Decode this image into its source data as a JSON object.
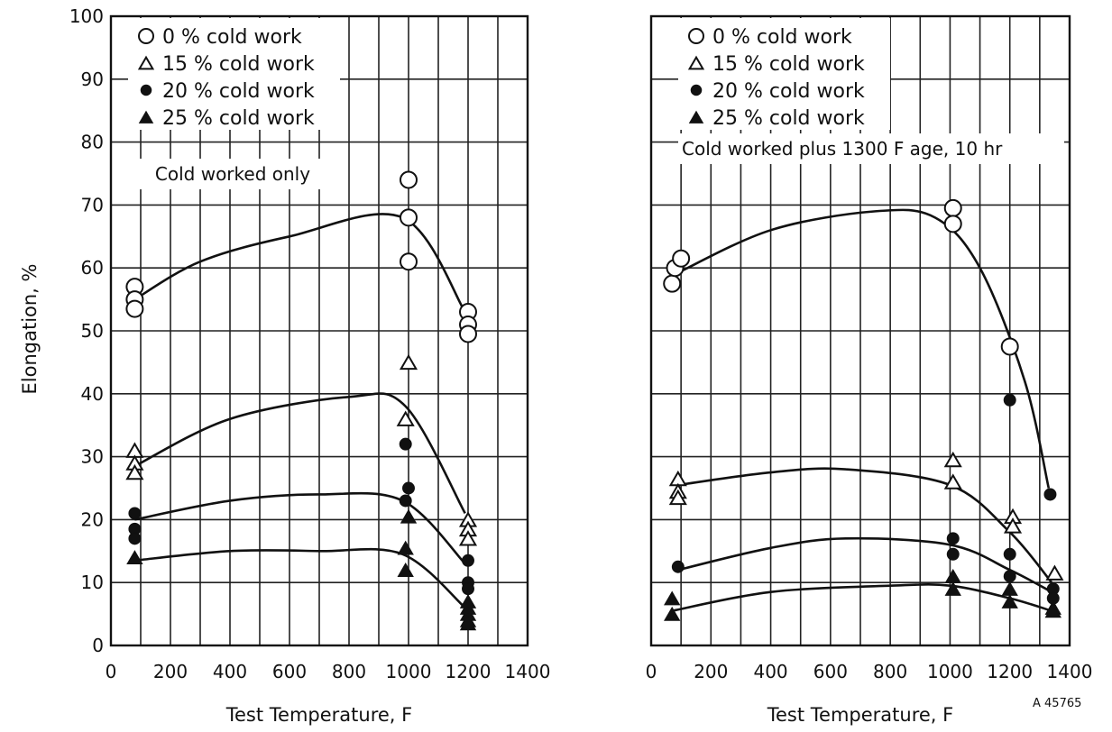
{
  "figure_ref": "A 45765",
  "chart_data": [
    {
      "type": "scatter",
      "note": "Cold worked only",
      "xlabel": "Test Temperature, F",
      "ylabel": "Elongation, %",
      "xlim": [
        0,
        1400
      ],
      "ylim": [
        0,
        100
      ],
      "xticks": [
        "0",
        "200",
        "400",
        "600",
        "800",
        "1000",
        "1200",
        "1400"
      ],
      "yticks": [
        "0",
        "10",
        "20",
        "30",
        "40",
        "50",
        "60",
        "70",
        "80",
        "90",
        "100"
      ],
      "grid": true,
      "legend_position": "top-left",
      "series": [
        {
          "name": "0 % cold work",
          "marker": "open-circle",
          "points": [
            [
              80,
              57
            ],
            [
              80,
              55
            ],
            [
              80,
              53.5
            ],
            [
              1000,
              74
            ],
            [
              1000,
              68
            ],
            [
              1000,
              61
            ],
            [
              1200,
              53
            ],
            [
              1200,
              51
            ],
            [
              1200,
              49.5
            ]
          ],
          "curve": [
            [
              80,
              55
            ],
            [
              300,
              61
            ],
            [
              600,
              65
            ],
            [
              980,
              68
            ],
            [
              1190,
              53
            ]
          ]
        },
        {
          "name": "15 % cold work",
          "marker": "open-triangle",
          "points": [
            [
              80,
              31
            ],
            [
              80,
              29
            ],
            [
              80,
              27.5
            ],
            [
              1000,
              45
            ],
            [
              990,
              36
            ],
            [
              1200,
              20
            ],
            [
              1200,
              18.5
            ],
            [
              1200,
              17
            ]
          ],
          "curve": [
            [
              80,
              28.5
            ],
            [
              400,
              36
            ],
            [
              800,
              39.5
            ],
            [
              990,
              38
            ],
            [
              1190,
              21
            ]
          ]
        },
        {
          "name": "20 % cold work",
          "marker": "filled-circle",
          "points": [
            [
              80,
              21
            ],
            [
              80,
              18.5
            ],
            [
              80,
              17
            ],
            [
              990,
              32
            ],
            [
              1000,
              25
            ],
            [
              990,
              23
            ],
            [
              1200,
              13.5
            ],
            [
              1200,
              10
            ],
            [
              1200,
              9
            ]
          ],
          "curve": [
            [
              80,
              20
            ],
            [
              400,
              23
            ],
            [
              700,
              24
            ],
            [
              980,
              23
            ],
            [
              1190,
              13
            ]
          ]
        },
        {
          "name": "25 % cold work",
          "marker": "filled-triangle",
          "points": [
            [
              80,
              14
            ],
            [
              990,
              15.5
            ],
            [
              990,
              12
            ],
            [
              1000,
              20.5
            ],
            [
              1200,
              7
            ],
            [
              1200,
              6
            ],
            [
              1200,
              5
            ],
            [
              1200,
              4
            ],
            [
              1200,
              3.5
            ]
          ],
          "curve": [
            [
              80,
              13.5
            ],
            [
              400,
              15
            ],
            [
              700,
              15
            ],
            [
              980,
              14.5
            ],
            [
              1190,
              6
            ]
          ]
        }
      ]
    },
    {
      "type": "scatter",
      "note": "Cold worked plus 1300 F age, 10 hr",
      "xlabel": "Test Temperature, F",
      "ylabel": "",
      "xlim": [
        0,
        1400
      ],
      "ylim": [
        0,
        100
      ],
      "xticks": [
        "0",
        "200",
        "400",
        "600",
        "800",
        "1000",
        "1200",
        "1400"
      ],
      "yticks": [],
      "grid": true,
      "legend_position": "top-left",
      "series": [
        {
          "name": "0 % cold work",
          "marker": "open-circle",
          "points": [
            [
              70,
              57.5
            ],
            [
              80,
              60
            ],
            [
              100,
              61.5
            ],
            [
              1010,
              69.5
            ],
            [
              1010,
              67
            ],
            [
              1200,
              47.5
            ]
          ],
          "curve": [
            [
              80,
              59
            ],
            [
              400,
              66
            ],
            [
              750,
              69
            ],
            [
              950,
              68
            ],
            [
              1100,
              60
            ],
            [
              1250,
              42
            ],
            [
              1330,
              25
            ]
          ]
        },
        {
          "name": "15 % cold work",
          "marker": "open-triangle",
          "points": [
            [
              90,
              26.5
            ],
            [
              90,
              24.5
            ],
            [
              90,
              23.5
            ],
            [
              1010,
              29.5
            ],
            [
              1010,
              26
            ],
            [
              1210,
              20.5
            ],
            [
              1210,
              19
            ],
            [
              1350,
              11.5
            ]
          ],
          "curve": [
            [
              90,
              25.5
            ],
            [
              400,
              27.5
            ],
            [
              650,
              28
            ],
            [
              1000,
              25.5
            ],
            [
              1200,
              18
            ],
            [
              1340,
              10
            ]
          ]
        },
        {
          "name": "20 % cold work",
          "marker": "filled-circle",
          "points": [
            [
              90,
              12.5
            ],
            [
              1335,
              24
            ],
            [
              1200,
              39
            ],
            [
              1010,
              17
            ],
            [
              1010,
              14.5
            ],
            [
              1200,
              14.5
            ],
            [
              1200,
              11
            ],
            [
              1345,
              9
            ],
            [
              1345,
              7.5
            ]
          ],
          "curve": [
            [
              90,
              12
            ],
            [
              400,
              15.5
            ],
            [
              650,
              17
            ],
            [
              1000,
              16
            ],
            [
              1200,
              12
            ],
            [
              1340,
              8.5
            ]
          ]
        },
        {
          "name": "25 % cold work",
          "marker": "filled-triangle",
          "points": [
            [
              70,
              7.5
            ],
            [
              70,
              5
            ],
            [
              1010,
              11
            ],
            [
              1010,
              9
            ],
            [
              1200,
              9
            ],
            [
              1200,
              7
            ],
            [
              1345,
              6
            ],
            [
              1345,
              5.5
            ]
          ],
          "curve": [
            [
              70,
              5.5
            ],
            [
              400,
              8.5
            ],
            [
              800,
              9.5
            ],
            [
              1000,
              9.5
            ],
            [
              1200,
              7.5
            ],
            [
              1340,
              5.5
            ]
          ]
        }
      ]
    }
  ]
}
